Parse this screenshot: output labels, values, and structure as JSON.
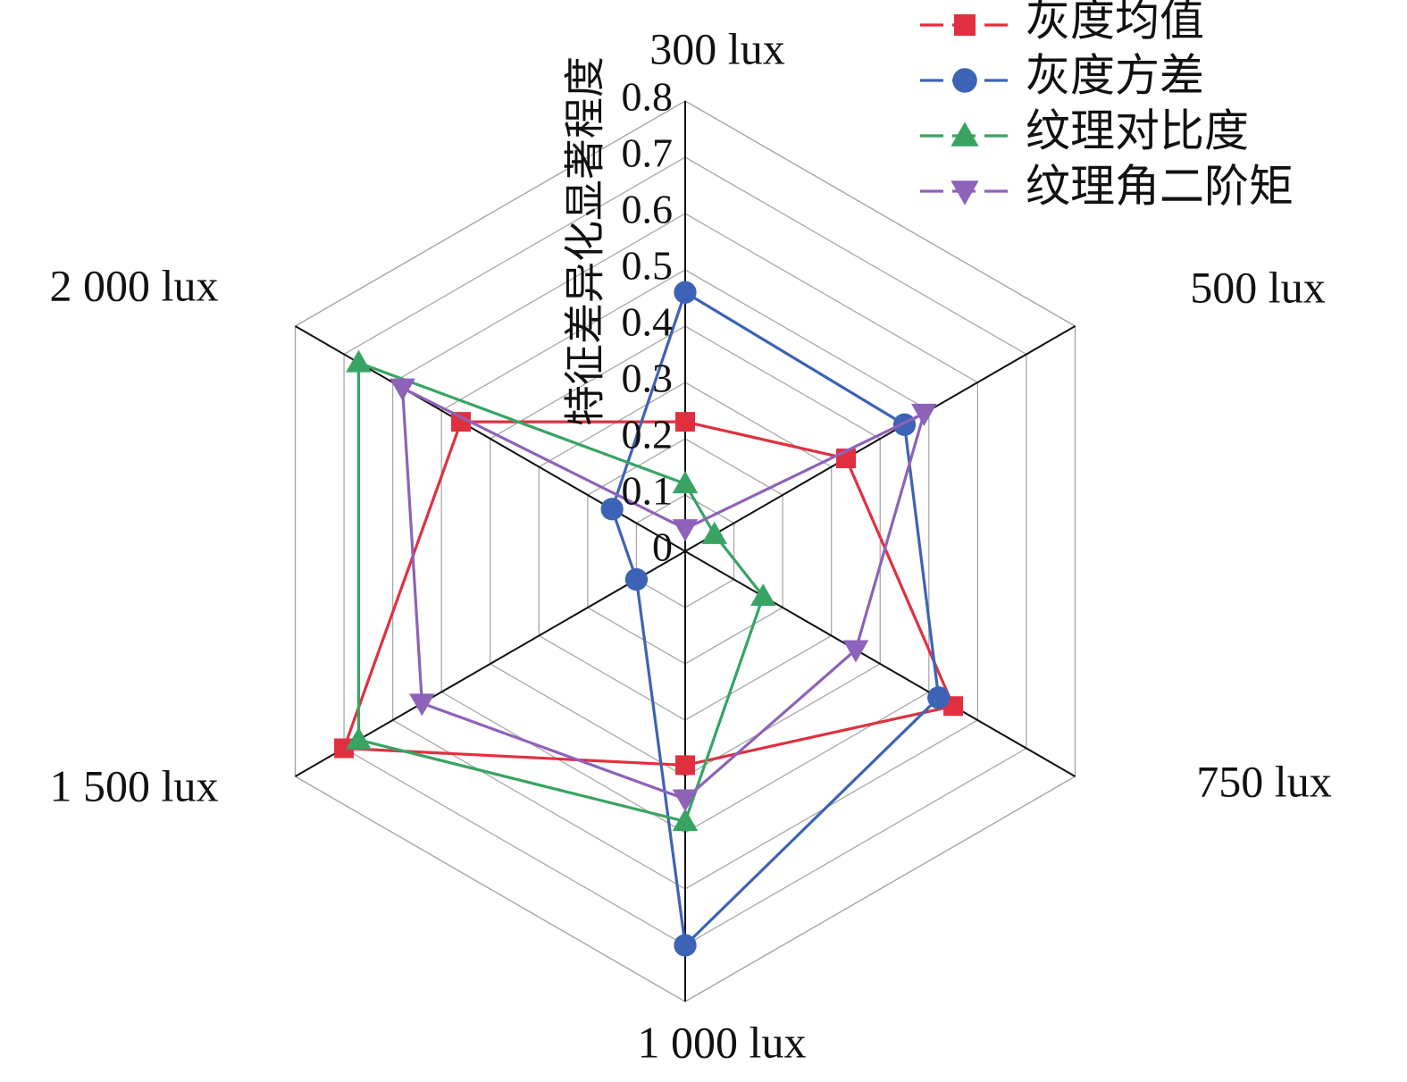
{
  "chart_data": {
    "type": "radar",
    "title": "",
    "radial_label": "特征差异化显著程度",
    "axes": [
      "300 lux",
      "500 lux",
      "750 lux",
      "1 000 lux",
      "1 500 lux",
      "2 000 lux"
    ],
    "rlim": [
      0,
      0.8
    ],
    "ticks": [
      "0",
      "0.1",
      "0.2",
      "0.3",
      "0.4",
      "0.5",
      "0.6",
      "0.7",
      "0.8"
    ],
    "grid": true,
    "legend_position": "top-right",
    "series": [
      {
        "name": "灰度均值",
        "color": "#e0303f",
        "marker": "square",
        "values": [
          0.23,
          0.33,
          0.55,
          0.38,
          0.7,
          0.46
        ]
      },
      {
        "name": "灰度方差",
        "color": "#3d63b6",
        "marker": "circle",
        "values": [
          0.46,
          0.45,
          0.52,
          0.7,
          0.1,
          0.15
        ]
      },
      {
        "name": "纹理对比度",
        "color": "#38a463",
        "marker": "triangle-up",
        "values": [
          0.12,
          0.06,
          0.16,
          0.48,
          0.67,
          0.67
        ]
      },
      {
        "name": "纹理角二阶矩",
        "color": "#8e62b9",
        "marker": "triangle-down",
        "values": [
          0.04,
          0.49,
          0.35,
          0.44,
          0.54,
          0.58
        ]
      }
    ]
  }
}
